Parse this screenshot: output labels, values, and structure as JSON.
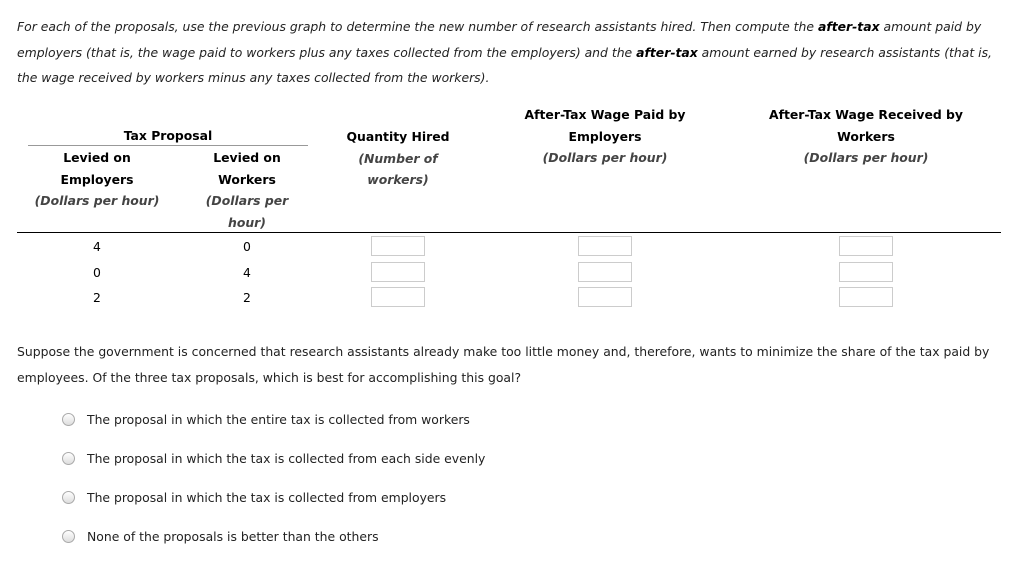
{
  "intro": {
    "p1": "For each of the proposals, use the previous graph to determine the new number of research assistants hired. Then compute the ",
    "b1": "after-tax",
    "p2": " amount paid by employers (that is, the wage paid to workers plus any taxes collected from the employers) and the ",
    "b2": "after-tax",
    "p3": " amount earned by research assistants (that is, the wage received by workers minus any taxes collected from the workers)."
  },
  "table": {
    "group_header": "Tax Proposal",
    "headers": {
      "employers": {
        "title": "Levied on Employers",
        "unit": "(Dollars per hour)"
      },
      "workers": {
        "title": "Levied on Workers",
        "unit": "(Dollars per hour)"
      },
      "quantity": {
        "title": "Quantity Hired",
        "unit": "(Number of workers)"
      },
      "paid": {
        "title": "After-Tax Wage Paid by Employers",
        "unit": "(Dollars per hour)"
      },
      "received": {
        "title": "After-Tax Wage Received by Workers",
        "unit": "(Dollars per hour)"
      }
    },
    "rows": [
      {
        "employers": "4",
        "workers": "0",
        "quantity": "",
        "paid": "",
        "received": ""
      },
      {
        "employers": "0",
        "workers": "4",
        "quantity": "",
        "paid": "",
        "received": ""
      },
      {
        "employers": "2",
        "workers": "2",
        "quantity": "",
        "paid": "",
        "received": ""
      }
    ]
  },
  "question": "Suppose the government is concerned that research assistants already make too little money and, therefore, wants to minimize the share of the tax paid by employees. Of the three tax proposals, which is best for accomplishing this goal?",
  "options": [
    "The proposal in which the entire tax is collected from workers",
    "The proposal in which the tax is collected from each side evenly",
    "The proposal in which the tax is collected from employers",
    "None of the proposals is better than the others"
  ]
}
